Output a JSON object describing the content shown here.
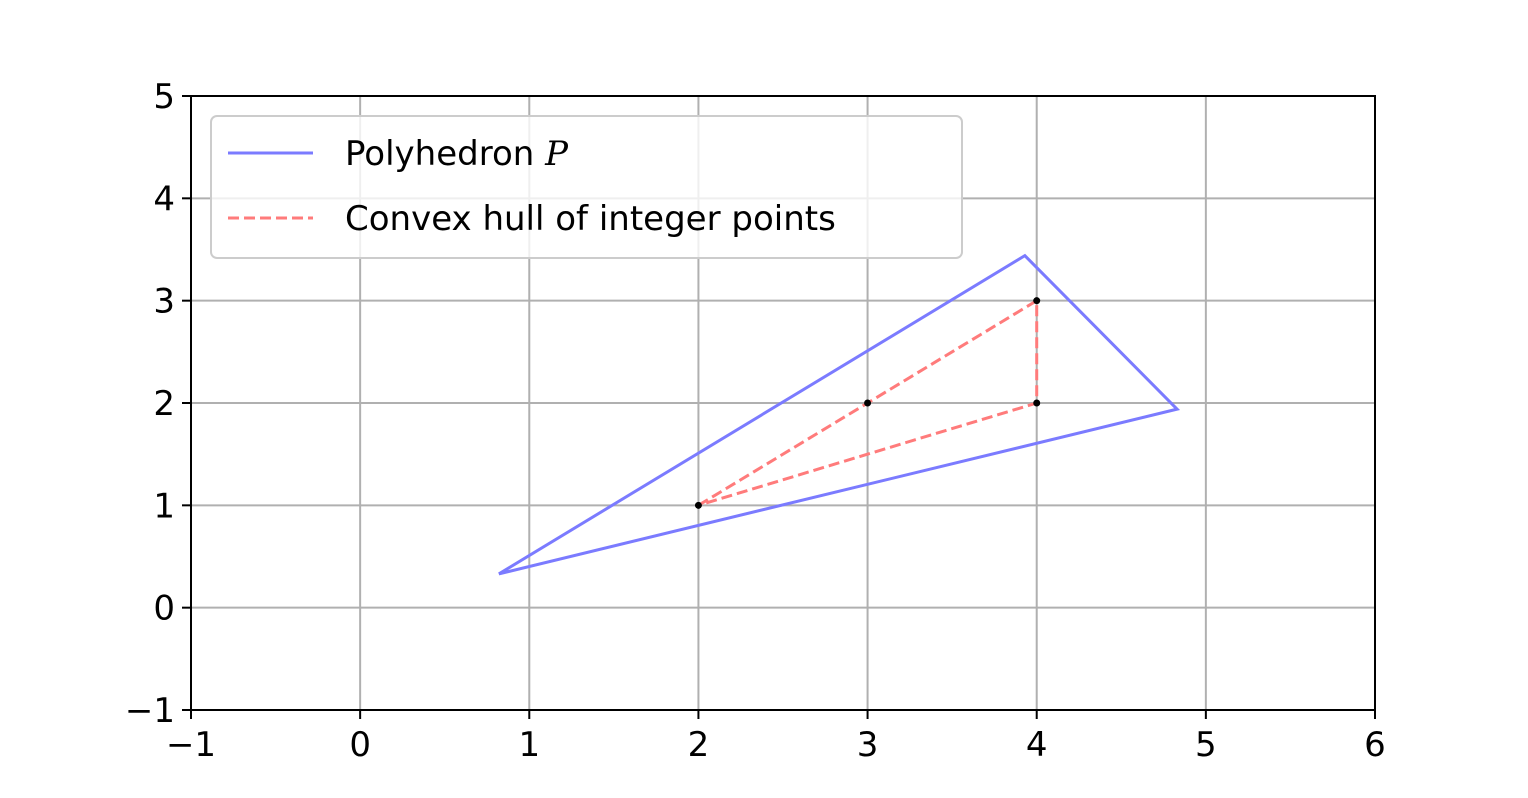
{
  "chart_data": {
    "type": "line",
    "xlim": [
      -1,
      6
    ],
    "ylim": [
      -1,
      5
    ],
    "xticks": [
      -1,
      0,
      1,
      2,
      3,
      4,
      5,
      6
    ],
    "yticks": [
      -1,
      0,
      1,
      2,
      3,
      4,
      5
    ],
    "xtick_labels": [
      "−1",
      "0",
      "1",
      "2",
      "3",
      "4",
      "5",
      "6"
    ],
    "ytick_labels": [
      "−1",
      "0",
      "1",
      "2",
      "3",
      "4",
      "5"
    ],
    "grid": true,
    "legend_position": "top-left",
    "series": [
      {
        "name": "Polyhedron",
        "name_math": "P",
        "style": "solid",
        "color": "#7b7bff",
        "points": [
          [
            0.82,
            0.33
          ],
          [
            3.93,
            3.44
          ],
          [
            4.83,
            1.94
          ],
          [
            0.82,
            0.33
          ]
        ]
      },
      {
        "name": "Convex hull of integer points",
        "style": "dashed",
        "color": "#ff7b7b",
        "points": [
          [
            2,
            1
          ],
          [
            3,
            2
          ],
          [
            4,
            3
          ],
          [
            4,
            2
          ],
          [
            2,
            1
          ]
        ],
        "markers": [
          [
            2,
            1
          ],
          [
            3,
            2
          ],
          [
            4,
            3
          ],
          [
            4,
            2
          ]
        ]
      }
    ]
  }
}
